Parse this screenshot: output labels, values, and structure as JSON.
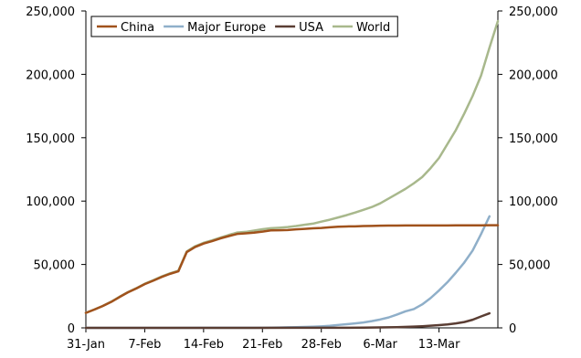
{
  "chart_data": {
    "type": "line",
    "title": "",
    "xlabel": "",
    "ylabel": "",
    "x_ticks": [
      "31-Jan",
      "7-Feb",
      "14-Feb",
      "21-Feb",
      "28-Feb",
      "6-Mar",
      "13-Mar"
    ],
    "x_range": [
      "2020-01-31",
      "2020-03-20"
    ],
    "ylim": [
      0,
      250000
    ],
    "y_ticks": [
      "0",
      "50,000",
      "100,000",
      "150,000",
      "200,000",
      "250,000"
    ],
    "y_ticks_right": [
      "0",
      "50,000",
      "100,000",
      "150,000",
      "200,000",
      "250,000"
    ],
    "grid": false,
    "legend_position": "top-left",
    "series": [
      {
        "name": "China",
        "color": "#a0521c",
        "points": [
          [
            "2020-01-31",
            11800
          ],
          [
            "2020-02-01",
            14400
          ],
          [
            "2020-02-02",
            17200
          ],
          [
            "2020-02-03",
            20400
          ],
          [
            "2020-02-04",
            24300
          ],
          [
            "2020-02-05",
            28000
          ],
          [
            "2020-02-06",
            31100
          ],
          [
            "2020-02-07",
            34500
          ],
          [
            "2020-02-08",
            37200
          ],
          [
            "2020-02-09",
            40100
          ],
          [
            "2020-02-10",
            42600
          ],
          [
            "2020-02-11",
            44600
          ],
          [
            "2020-02-12",
            59800
          ],
          [
            "2020-02-13",
            63800
          ],
          [
            "2020-02-14",
            66500
          ],
          [
            "2020-02-15",
            68400
          ],
          [
            "2020-02-16",
            70600
          ],
          [
            "2020-02-17",
            72400
          ],
          [
            "2020-02-18",
            74100
          ],
          [
            "2020-02-19",
            74600
          ],
          [
            "2020-02-20",
            75100
          ],
          [
            "2020-02-21",
            75900
          ],
          [
            "2020-02-22",
            76900
          ],
          [
            "2020-02-23",
            77000
          ],
          [
            "2020-02-24",
            77200
          ],
          [
            "2020-02-25",
            77700
          ],
          [
            "2020-02-26",
            78100
          ],
          [
            "2020-02-27",
            78500
          ],
          [
            "2020-02-28",
            78800
          ],
          [
            "2020-02-29",
            79300
          ],
          [
            "2020-03-01",
            79800
          ],
          [
            "2020-03-02",
            80000
          ],
          [
            "2020-03-03",
            80100
          ],
          [
            "2020-03-04",
            80300
          ],
          [
            "2020-03-05",
            80400
          ],
          [
            "2020-03-06",
            80600
          ],
          [
            "2020-03-07",
            80700
          ],
          [
            "2020-03-08",
            80700
          ],
          [
            "2020-03-09",
            80800
          ],
          [
            "2020-03-10",
            80800
          ],
          [
            "2020-03-11",
            80800
          ],
          [
            "2020-03-12",
            80800
          ],
          [
            "2020-03-13",
            80800
          ],
          [
            "2020-03-14",
            80800
          ],
          [
            "2020-03-15",
            80900
          ],
          [
            "2020-03-16",
            80900
          ],
          [
            "2020-03-17",
            80900
          ],
          [
            "2020-03-18",
            80900
          ],
          [
            "2020-03-19",
            81000
          ],
          [
            "2020-03-20",
            81000
          ]
        ]
      },
      {
        "name": "Major Europe",
        "color": "#8fafc9",
        "points": [
          [
            "2020-01-31",
            15
          ],
          [
            "2020-02-05",
            30
          ],
          [
            "2020-02-10",
            45
          ],
          [
            "2020-02-15",
            60
          ],
          [
            "2020-02-20",
            90
          ],
          [
            "2020-02-21",
            120
          ],
          [
            "2020-02-22",
            200
          ],
          [
            "2020-02-23",
            300
          ],
          [
            "2020-02-24",
            420
          ],
          [
            "2020-02-25",
            550
          ],
          [
            "2020-02-26",
            700
          ],
          [
            "2020-02-27",
            900
          ],
          [
            "2020-02-28",
            1200
          ],
          [
            "2020-02-29",
            1600
          ],
          [
            "2020-03-01",
            2300
          ],
          [
            "2020-03-02",
            2900
          ],
          [
            "2020-03-03",
            3500
          ],
          [
            "2020-03-04",
            4200
          ],
          [
            "2020-03-05",
            5300
          ],
          [
            "2020-03-06",
            6600
          ],
          [
            "2020-03-07",
            8200
          ],
          [
            "2020-03-08",
            10500
          ],
          [
            "2020-03-09",
            13000
          ],
          [
            "2020-03-10",
            14800
          ],
          [
            "2020-03-11",
            18500
          ],
          [
            "2020-03-12",
            23500
          ],
          [
            "2020-03-13",
            29500
          ],
          [
            "2020-03-14",
            36000
          ],
          [
            "2020-03-15",
            43500
          ],
          [
            "2020-03-16",
            51500
          ],
          [
            "2020-03-17",
            61000
          ],
          [
            "2020-03-18",
            74000
          ],
          [
            "2020-03-19",
            88000
          ]
        ]
      },
      {
        "name": "USA",
        "color": "#5a3d33",
        "points": [
          [
            "2020-01-31",
            7
          ],
          [
            "2020-02-10",
            12
          ],
          [
            "2020-02-20",
            15
          ],
          [
            "2020-02-25",
            53
          ],
          [
            "2020-02-29",
            70
          ],
          [
            "2020-03-02",
            100
          ],
          [
            "2020-03-04",
            150
          ],
          [
            "2020-03-06",
            320
          ],
          [
            "2020-03-08",
            550
          ],
          [
            "2020-03-10",
            1000
          ],
          [
            "2020-03-11",
            1300
          ],
          [
            "2020-03-12",
            1700
          ],
          [
            "2020-03-13",
            2200
          ],
          [
            "2020-03-14",
            2700
          ],
          [
            "2020-03-15",
            3500
          ],
          [
            "2020-03-16",
            4600
          ],
          [
            "2020-03-17",
            6400
          ],
          [
            "2020-03-18",
            9000
          ],
          [
            "2020-03-19",
            11500
          ]
        ]
      },
      {
        "name": "World",
        "color": "#a8b88c",
        "points": [
          [
            "2020-01-31",
            11900
          ],
          [
            "2020-02-01",
            14500
          ],
          [
            "2020-02-02",
            17300
          ],
          [
            "2020-02-03",
            20600
          ],
          [
            "2020-02-04",
            24500
          ],
          [
            "2020-02-05",
            28200
          ],
          [
            "2020-02-06",
            31300
          ],
          [
            "2020-02-07",
            34800
          ],
          [
            "2020-02-08",
            37500
          ],
          [
            "2020-02-09",
            40500
          ],
          [
            "2020-02-10",
            43000
          ],
          [
            "2020-02-11",
            45100
          ],
          [
            "2020-02-12",
            60300
          ],
          [
            "2020-02-13",
            64400
          ],
          [
            "2020-02-14",
            67100
          ],
          [
            "2020-02-15",
            69000
          ],
          [
            "2020-02-16",
            71200
          ],
          [
            "2020-02-17",
            73300
          ],
          [
            "2020-02-18",
            75200
          ],
          [
            "2020-02-19",
            75700
          ],
          [
            "2020-02-20",
            76700
          ],
          [
            "2020-02-21",
            77800
          ],
          [
            "2020-02-22",
            78600
          ],
          [
            "2020-02-23",
            79000
          ],
          [
            "2020-02-24",
            79500
          ],
          [
            "2020-02-25",
            80300
          ],
          [
            "2020-02-26",
            81300
          ],
          [
            "2020-02-27",
            82200
          ],
          [
            "2020-02-28",
            83800
          ],
          [
            "2020-02-29",
            85300
          ],
          [
            "2020-03-01",
            87100
          ],
          [
            "2020-03-02",
            88900
          ],
          [
            "2020-03-03",
            90900
          ],
          [
            "2020-03-04",
            93100
          ],
          [
            "2020-03-05",
            95300
          ],
          [
            "2020-03-06",
            98200
          ],
          [
            "2020-03-07",
            102000
          ],
          [
            "2020-03-08",
            105800
          ],
          [
            "2020-03-09",
            109600
          ],
          [
            "2020-03-10",
            114000
          ],
          [
            "2020-03-11",
            119000
          ],
          [
            "2020-03-12",
            126000
          ],
          [
            "2020-03-13",
            134000
          ],
          [
            "2020-03-14",
            145000
          ],
          [
            "2020-03-15",
            156000
          ],
          [
            "2020-03-16",
            169000
          ],
          [
            "2020-03-17",
            183000
          ],
          [
            "2020-03-18",
            199000
          ],
          [
            "2020-03-19",
            221000
          ],
          [
            "2020-03-20",
            242000
          ]
        ]
      }
    ]
  }
}
